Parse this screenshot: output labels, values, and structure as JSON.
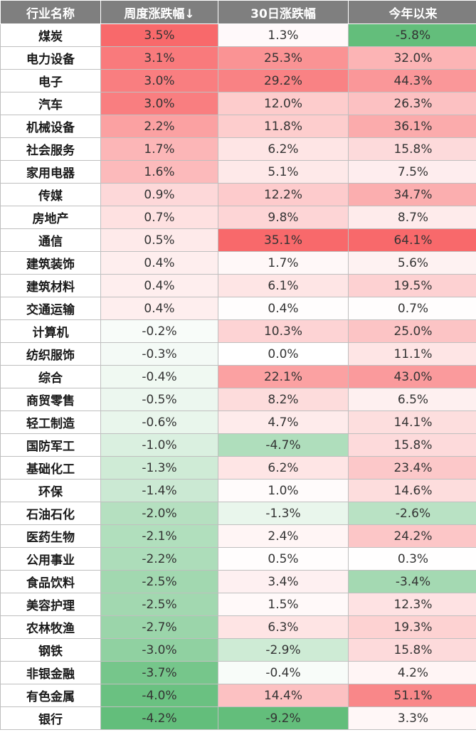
{
  "chart_data": {
    "type": "table",
    "columns": [
      "行业名称",
      "周度涨跌幅↓",
      "30日涨跌幅",
      "今年以来"
    ],
    "rows": [
      [
        "煤炭",
        3.5,
        1.3,
        -5.8
      ],
      [
        "电力设备",
        3.1,
        25.3,
        32.0
      ],
      [
        "电子",
        3.0,
        29.2,
        44.3
      ],
      [
        "汽车",
        3.0,
        12.0,
        26.3
      ],
      [
        "机械设备",
        2.2,
        11.8,
        36.1
      ],
      [
        "社会服务",
        1.7,
        6.2,
        15.8
      ],
      [
        "家用电器",
        1.6,
        5.1,
        7.5
      ],
      [
        "传媒",
        0.9,
        12.2,
        34.7
      ],
      [
        "房地产",
        0.7,
        9.8,
        8.7
      ],
      [
        "通信",
        0.5,
        35.1,
        64.1
      ],
      [
        "建筑装饰",
        0.4,
        1.7,
        5.6
      ],
      [
        "建筑材料",
        0.4,
        6.1,
        19.5
      ],
      [
        "交通运输",
        0.4,
        0.4,
        0.7
      ],
      [
        "计算机",
        -0.2,
        10.3,
        25.0
      ],
      [
        "纺织服饰",
        -0.3,
        0.0,
        11.1
      ],
      [
        "综合",
        -0.4,
        22.1,
        43.0
      ],
      [
        "商贸零售",
        -0.5,
        8.2,
        6.5
      ],
      [
        "轻工制造",
        -0.6,
        4.7,
        14.1
      ],
      [
        "国防军工",
        -1.0,
        -4.7,
        15.8
      ],
      [
        "基础化工",
        -1.3,
        6.2,
        23.4
      ],
      [
        "环保",
        -1.4,
        1.0,
        14.6
      ],
      [
        "石油石化",
        -2.0,
        -1.3,
        -2.6
      ],
      [
        "医药生物",
        -2.1,
        2.4,
        24.2
      ],
      [
        "公用事业",
        -2.2,
        0.5,
        0.3
      ],
      [
        "食品饮料",
        -2.5,
        3.4,
        -3.4
      ],
      [
        "美容护理",
        -2.5,
        1.5,
        12.3
      ],
      [
        "农林牧渔",
        -2.7,
        6.3,
        19.3
      ],
      [
        "钢铁",
        -3.0,
        -2.9,
        15.8
      ],
      [
        "非银金融",
        -3.7,
        -0.4,
        4.2
      ],
      [
        "有色金属",
        -4.0,
        14.4,
        51.1
      ],
      [
        "银行",
        -4.2,
        -9.2,
        3.3
      ]
    ],
    "color_scale": {
      "positive": "#f8696b",
      "negative": "#63be7b",
      "neutral": "#ffffff"
    }
  }
}
